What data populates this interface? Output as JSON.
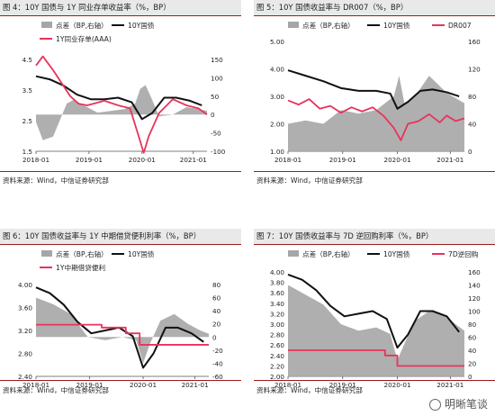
{
  "source_text": "资料来源：Wind，中信证券研究部",
  "watermark": "明晰笔谈",
  "colors": {
    "spread": "#a6a6a6",
    "yield": "#111111",
    "policy": "#e8335a",
    "accent": "#9b1b1b"
  },
  "chart_data": [
    {
      "type": "line",
      "title": "图 4：10Y 国债与 1Y 同业存单收益率（%，BP）",
      "legend": [
        "点差（BP,右轴）",
        "10Y国债",
        "1Y同业存单(AAA)"
      ],
      "x_ticks": [
        "2018-01",
        "2019-01",
        "2020-01",
        "2021-01"
      ],
      "left_ticks": [
        "4.5",
        "3.5",
        "2.5",
        "1.5"
      ],
      "right_ticks": [
        "150",
        "100",
        "50",
        "0",
        "-50",
        "-100"
      ],
      "ylim_left": [
        1.5,
        4.5
      ],
      "ylim_right": [
        -100,
        150
      ],
      "series": [
        {
          "name": "10Y国债",
          "axis": "left",
          "t": [
            0,
            0.08,
            0.16,
            0.24,
            0.32,
            0.4,
            0.48,
            0.56,
            0.62,
            0.68,
            0.75,
            0.82,
            0.9,
            0.97
          ],
          "values": [
            3.95,
            3.85,
            3.65,
            3.35,
            3.2,
            3.2,
            3.25,
            3.1,
            2.55,
            2.75,
            3.25,
            3.25,
            3.15,
            3.0
          ]
        },
        {
          "name": "1Y同业存单(AAA)",
          "axis": "left",
          "t": [
            0,
            0.04,
            0.1,
            0.2,
            0.25,
            0.3,
            0.4,
            0.48,
            0.55,
            0.6,
            0.63,
            0.66,
            0.72,
            0.8,
            0.88,
            0.95,
            1.0
          ],
          "values": [
            4.3,
            4.6,
            4.15,
            3.3,
            3.05,
            3.0,
            3.15,
            3.0,
            2.9,
            2.0,
            1.45,
            2.0,
            2.75,
            3.2,
            3.0,
            2.9,
            2.7
          ]
        },
        {
          "name": "点差（BP,右轴）",
          "axis": "right",
          "t": [
            0,
            0.04,
            0.1,
            0.18,
            0.22,
            0.28,
            0.36,
            0.44,
            0.52,
            0.58,
            0.61,
            0.64,
            0.67,
            0.72,
            0.8,
            0.88,
            0.95,
            1.0
          ],
          "values": [
            -20,
            -70,
            -60,
            30,
            40,
            25,
            5,
            10,
            15,
            30,
            70,
            80,
            50,
            -5,
            0,
            20,
            15,
            10
          ]
        }
      ]
    },
    {
      "type": "line",
      "title": "图 5：10Y 国债收益率与 DR007（%，BP）",
      "legend": [
        "点差（BP,右轴）",
        "10Y国债",
        "DR007"
      ],
      "x_ticks": [
        "2018-01",
        "2019-01",
        "2020-01",
        "2021-01"
      ],
      "left_ticks": [
        "5.00",
        "4.00",
        "3.00",
        "2.00",
        "1.00"
      ],
      "right_ticks": [
        "160",
        "120",
        "80",
        "40",
        "0"
      ],
      "ylim_left": [
        1.0,
        5.0
      ],
      "ylim_right": [
        0,
        160
      ],
      "series": [
        {
          "name": "10Y国债",
          "axis": "left",
          "t": [
            0,
            0.1,
            0.2,
            0.3,
            0.4,
            0.5,
            0.58,
            0.62,
            0.68,
            0.75,
            0.82,
            0.9,
            0.97
          ],
          "values": [
            3.95,
            3.75,
            3.55,
            3.3,
            3.2,
            3.2,
            3.1,
            2.55,
            2.8,
            3.2,
            3.25,
            3.15,
            3.0
          ]
        },
        {
          "name": "DR007",
          "axis": "left",
          "t": [
            0,
            0.06,
            0.12,
            0.18,
            0.24,
            0.3,
            0.36,
            0.42,
            0.48,
            0.54,
            0.6,
            0.64,
            0.68,
            0.74,
            0.8,
            0.86,
            0.9,
            0.95,
            1.0
          ],
          "values": [
            2.85,
            2.7,
            2.9,
            2.55,
            2.65,
            2.4,
            2.6,
            2.45,
            2.6,
            2.3,
            1.85,
            1.4,
            2.0,
            2.1,
            2.35,
            2.05,
            2.3,
            2.1,
            2.2
          ]
        },
        {
          "name": "点差（BP,右轴）",
          "axis": "right",
          "t": [
            0,
            0.1,
            0.2,
            0.3,
            0.4,
            0.5,
            0.6,
            0.63,
            0.66,
            0.72,
            0.8,
            0.9,
            1.0
          ],
          "values": [
            40,
            45,
            40,
            60,
            55,
            60,
            80,
            110,
            70,
            80,
            110,
            85,
            70
          ]
        }
      ]
    },
    {
      "type": "line",
      "title": "图 6：10Y 国债收益率与 1Y 中期借贷便利利率（%，BP）",
      "legend": [
        "点差（BP,右轴）",
        "10Y国债",
        "1Y中期借贷便利"
      ],
      "x_ticks": [
        "2018-01",
        "2019-01",
        "2020-01",
        "2021-01"
      ],
      "left_ticks": [
        "4.00",
        "3.60",
        "3.20",
        "2.80",
        "2.40"
      ],
      "right_ticks": [
        "80",
        "60",
        "40",
        "20",
        "0",
        "-20",
        "-40",
        "-60"
      ],
      "ylim_left": [
        2.4,
        4.0
      ],
      "ylim_right": [
        -60,
        80
      ],
      "series": [
        {
          "name": "10Y国债",
          "axis": "left",
          "t": [
            0,
            0.08,
            0.16,
            0.24,
            0.32,
            0.4,
            0.48,
            0.56,
            0.62,
            0.68,
            0.75,
            0.82,
            0.9,
            0.97
          ],
          "values": [
            3.95,
            3.85,
            3.65,
            3.35,
            3.15,
            3.2,
            3.25,
            3.1,
            2.55,
            2.8,
            3.25,
            3.25,
            3.15,
            3.0
          ]
        },
        {
          "name": "1Y中期借贷便利",
          "axis": "left",
          "t": [
            0,
            0.38,
            0.38,
            0.52,
            0.52,
            0.6,
            0.6,
            1.0
          ],
          "values": [
            3.3,
            3.3,
            3.25,
            3.25,
            3.15,
            3.15,
            2.95,
            2.95
          ]
        },
        {
          "name": "点差（BP,右轴）",
          "axis": "right",
          "t": [
            0,
            0.1,
            0.2,
            0.3,
            0.4,
            0.5,
            0.58,
            0.62,
            0.66,
            0.72,
            0.8,
            0.88,
            0.95,
            1.0
          ],
          "values": [
            60,
            50,
            35,
            0,
            -5,
            0,
            -5,
            -40,
            -10,
            25,
            35,
            20,
            10,
            5
          ]
        }
      ]
    },
    {
      "type": "line",
      "title": "图 7：10Y 国债收益率与 7D 逆回购利率（%，BP）",
      "legend": [
        "点差（BP,右轴）",
        "10Y国债",
        "7D逆回购"
      ],
      "x_ticks": [
        "2018-01",
        "2019-01",
        "2020-01",
        "2021-01"
      ],
      "left_ticks": [
        "4.00",
        "3.80",
        "3.60",
        "3.40",
        "3.20",
        "3.00",
        "2.80",
        "2.60",
        "2.40",
        "2.20",
        "2.00"
      ],
      "right_ticks": [
        "160",
        "140",
        "120",
        "100",
        "80",
        "60",
        "40",
        "20",
        "0"
      ],
      "ylim_left": [
        2.0,
        4.0
      ],
      "ylim_right": [
        0,
        160
      ],
      "series": [
        {
          "name": "10Y国债",
          "axis": "left",
          "t": [
            0,
            0.08,
            0.16,
            0.24,
            0.32,
            0.4,
            0.48,
            0.56,
            0.62,
            0.68,
            0.75,
            0.82,
            0.9,
            0.97
          ],
          "values": [
            3.95,
            3.85,
            3.65,
            3.35,
            3.15,
            3.2,
            3.25,
            3.1,
            2.55,
            2.8,
            3.25,
            3.25,
            3.15,
            2.85
          ]
        },
        {
          "name": "7D逆回购",
          "axis": "left",
          "t": [
            0,
            0.4,
            0.4,
            0.55,
            0.55,
            0.62,
            0.62,
            1.0
          ],
          "values": [
            2.5,
            2.5,
            2.5,
            2.5,
            2.4,
            2.4,
            2.2,
            2.2
          ]
        },
        {
          "name": "点差（BP,右轴）",
          "axis": "right",
          "t": [
            0,
            0.1,
            0.2,
            0.3,
            0.4,
            0.5,
            0.58,
            0.62,
            0.66,
            0.72,
            0.8,
            0.88,
            0.95,
            1.0
          ],
          "values": [
            140,
            125,
            110,
            80,
            70,
            75,
            65,
            25,
            50,
            85,
            100,
            95,
            80,
            70
          ]
        }
      ]
    }
  ]
}
